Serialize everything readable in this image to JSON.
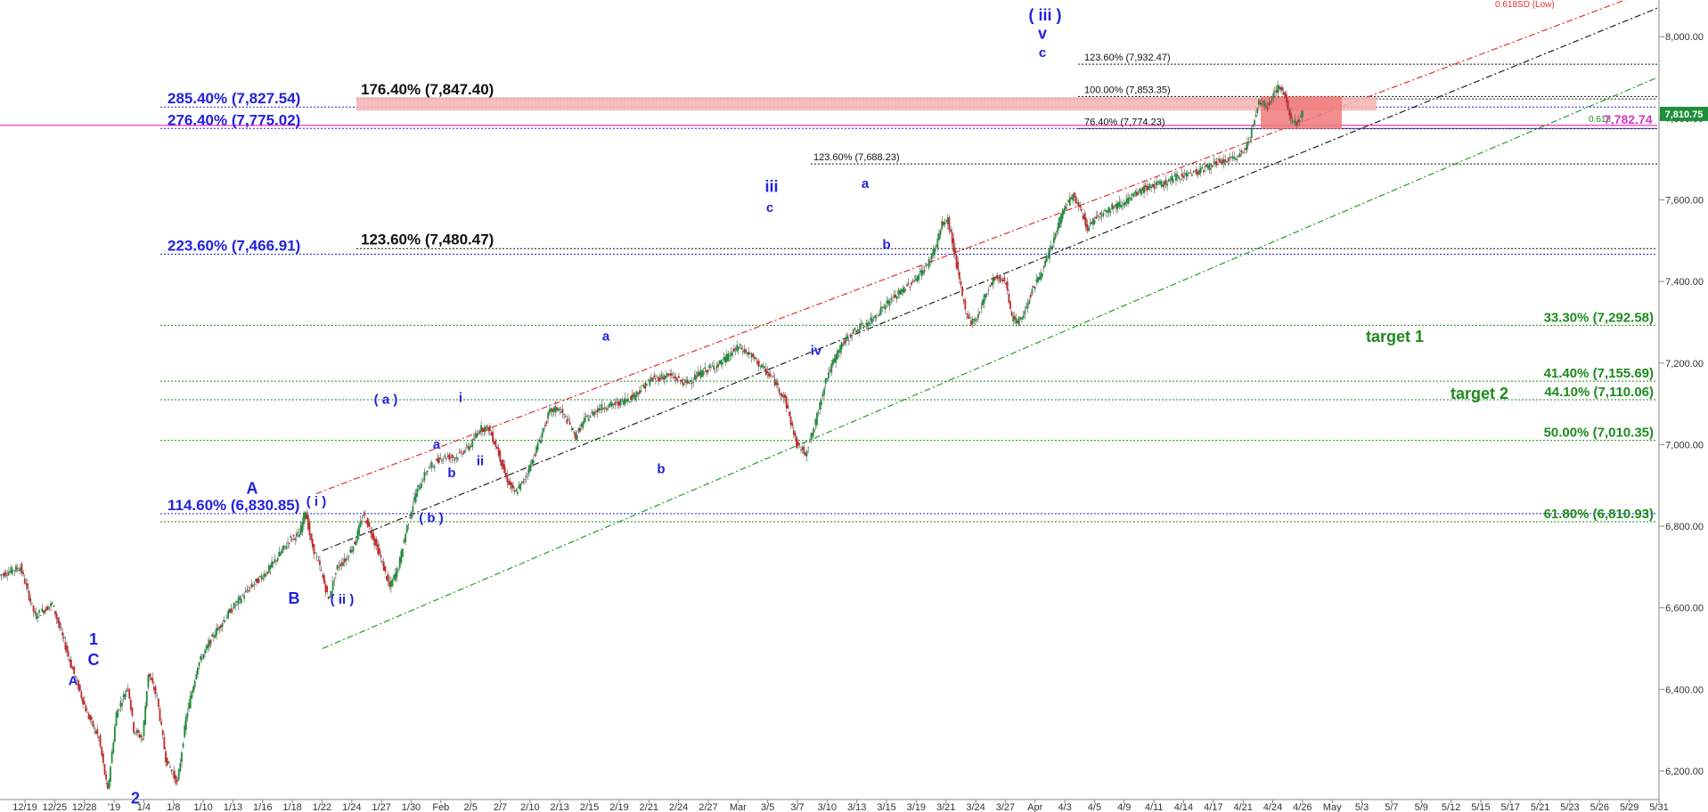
{
  "chart_data": {
    "type": "candlestick",
    "y_axis": {
      "ticks": [
        6200,
        6400,
        6600,
        6800,
        7000,
        7200,
        7400,
        7600,
        7800,
        8000
      ],
      "tick_labels": [
        "6,200.00",
        "6,400.00",
        "6,600.00",
        "6,800.00",
        "7,000.00",
        "7,200.00",
        "7,400.00",
        "7,600.00",
        "7,800.00",
        "8,000.00"
      ],
      "range": [
        6130,
        8090
      ],
      "position": "right"
    },
    "x_axis": {
      "tick_labels": [
        "12/19",
        "12/25",
        "12/28",
        "'19",
        "1/4",
        "1/8",
        "1/10",
        "1/13",
        "1/16",
        "1/18",
        "1/22",
        "1/24",
        "1/27",
        "1/30",
        "Feb",
        "2/5",
        "2/7",
        "2/10",
        "2/13",
        "2/15",
        "2/19",
        "2/21",
        "2/24",
        "2/27",
        "Mar",
        "3/5",
        "3/7",
        "3/10",
        "3/13",
        "3/15",
        "3/19",
        "3/21",
        "3/24",
        "3/27",
        "Apr",
        "4/3",
        "4/5",
        "4/9",
        "4/11",
        "4/14",
        "4/17",
        "4/21",
        "4/24",
        "4/26",
        "May",
        "5/3",
        "5/7",
        "5/9",
        "5/12",
        "5/15",
        "5/17",
        "5/21",
        "5/23",
        "5/26",
        "5/29",
        "5/31"
      ]
    },
    "price_path": [
      [
        0,
        6680
      ],
      [
        7,
        6700
      ],
      [
        12,
        6580
      ],
      [
        18,
        6610
      ],
      [
        24,
        6470
      ],
      [
        30,
        6340
      ],
      [
        34,
        6280
      ],
      [
        37,
        6150
      ],
      [
        40,
        6340
      ],
      [
        44,
        6410
      ],
      [
        46,
        6300
      ],
      [
        49,
        6280
      ],
      [
        51,
        6440
      ],
      [
        54,
        6380
      ],
      [
        57,
        6230
      ],
      [
        61,
        6170
      ],
      [
        64,
        6330
      ],
      [
        68,
        6460
      ],
      [
        74,
        6540
      ],
      [
        80,
        6600
      ],
      [
        86,
        6650
      ],
      [
        92,
        6690
      ],
      [
        96,
        6730
      ],
      [
        100,
        6770
      ],
      [
        103,
        6780
      ],
      [
        105,
        6840
      ],
      [
        107,
        6760
      ],
      [
        110,
        6700
      ],
      [
        113,
        6620
      ],
      [
        116,
        6700
      ],
      [
        119,
        6720
      ],
      [
        122,
        6760
      ],
      [
        125,
        6830
      ],
      [
        128,
        6780
      ],
      [
        131,
        6720
      ],
      [
        134,
        6650
      ],
      [
        137,
        6700
      ],
      [
        140,
        6800
      ],
      [
        143,
        6880
      ],
      [
        147,
        6940
      ],
      [
        152,
        6970
      ],
      [
        157,
        6970
      ],
      [
        162,
        7000
      ],
      [
        165,
        7040
      ],
      [
        168,
        7040
      ],
      [
        171,
        6990
      ],
      [
        174,
        6920
      ],
      [
        177,
        6880
      ],
      [
        180,
        6910
      ],
      [
        183,
        6960
      ],
      [
        186,
        7020
      ],
      [
        189,
        7080
      ],
      [
        192,
        7090
      ],
      [
        195,
        7060
      ],
      [
        198,
        7020
      ],
      [
        201,
        7060
      ],
      [
        206,
        7090
      ],
      [
        212,
        7100
      ],
      [
        218,
        7120
      ],
      [
        224,
        7160
      ],
      [
        230,
        7170
      ],
      [
        236,
        7150
      ],
      [
        242,
        7180
      ],
      [
        248,
        7200
      ],
      [
        254,
        7240
      ],
      [
        258,
        7220
      ],
      [
        262,
        7190
      ],
      [
        266,
        7160
      ],
      [
        270,
        7110
      ],
      [
        274,
        7000
      ],
      [
        277,
        6980
      ],
      [
        280,
        7040
      ],
      [
        284,
        7160
      ],
      [
        289,
        7240
      ],
      [
        294,
        7280
      ],
      [
        299,
        7300
      ],
      [
        304,
        7340
      ],
      [
        309,
        7370
      ],
      [
        314,
        7400
      ],
      [
        319,
        7440
      ],
      [
        322,
        7490
      ],
      [
        324,
        7540
      ],
      [
        326,
        7550
      ],
      [
        328,
        7480
      ],
      [
        330,
        7400
      ],
      [
        332,
        7330
      ],
      [
        334,
        7300
      ],
      [
        336,
        7310
      ],
      [
        339,
        7370
      ],
      [
        342,
        7410
      ],
      [
        346,
        7400
      ],
      [
        348,
        7310
      ],
      [
        350,
        7300
      ],
      [
        352,
        7320
      ],
      [
        355,
        7380
      ],
      [
        358,
        7420
      ],
      [
        361,
        7470
      ],
      [
        364,
        7540
      ],
      [
        366,
        7580
      ],
      [
        369,
        7610
      ],
      [
        372,
        7570
      ],
      [
        374,
        7530
      ],
      [
        377,
        7560
      ],
      [
        382,
        7580
      ],
      [
        388,
        7600
      ],
      [
        394,
        7630
      ],
      [
        400,
        7640
      ],
      [
        406,
        7660
      ],
      [
        412,
        7670
      ],
      [
        418,
        7690
      ],
      [
        424,
        7700
      ],
      [
        428,
        7720
      ],
      [
        431,
        7780
      ],
      [
        433,
        7840
      ],
      [
        436,
        7830
      ],
      [
        438,
        7860
      ],
      [
        440,
        7880
      ],
      [
        442,
        7850
      ],
      [
        444,
        7800
      ],
      [
        446,
        7790
      ],
      [
        448,
        7810
      ]
    ],
    "x_span": 570,
    "fib_levels": [
      {
        "label": "285.40% (7,827.54)",
        "value": 7827.54,
        "color": "#2222dd",
        "style": "blue-left"
      },
      {
        "label": "276.40% (7,775.02)",
        "value": 7775.02,
        "color": "#2222dd",
        "style": "blue-left"
      },
      {
        "label": "223.60% (7,466.91)",
        "value": 7466.91,
        "color": "#2222dd",
        "style": "blue-left"
      },
      {
        "label": "114.60% (6,830.85)",
        "value": 6830.85,
        "color": "#2222dd",
        "style": "blue-left"
      },
      {
        "label": "176.40% (7,847.40)",
        "value": 7847.4,
        "color": "#111111",
        "style": "black-big"
      },
      {
        "label": "123.60% (7,480.47)",
        "value": 7480.47,
        "color": "#111111",
        "style": "black-big"
      },
      {
        "label": "123.60% (7,932.47)",
        "value": 7932.47,
        "color": "#111111",
        "style": "black-small"
      },
      {
        "label": "100.00% (7,853.35)",
        "value": 7853.35,
        "color": "#111111",
        "style": "black-small"
      },
      {
        "label": "76.40% (7,774.23)",
        "value": 7774.23,
        "color": "#111111",
        "style": "black-small"
      },
      {
        "label": "123.60% (7,688.23)",
        "value": 7688.23,
        "color": "#111111",
        "style": "black-small-mid"
      },
      {
        "label": "33.30% (7,292.58)",
        "value": 7292.58,
        "color": "#1e8a1e",
        "style": "green"
      },
      {
        "label": "41.40% (7,155.69)",
        "value": 7155.69,
        "color": "#1e8a1e",
        "style": "green"
      },
      {
        "label": "44.10% (7,110.06)",
        "value": 7110.06,
        "color": "#1e8a1e",
        "style": "green"
      },
      {
        "label": "50.00% (7,010.35)",
        "value": 7010.35,
        "color": "#1e8a1e",
        "style": "green"
      },
      {
        "label": "61.80% (6,810.93)",
        "value": 6810.93,
        "color": "#1e8a1e",
        "style": "green"
      }
    ],
    "targets": [
      {
        "label": "target 1",
        "value": 7265
      },
      {
        "label": "target 2",
        "value": 7125
      }
    ],
    "wave_labels": [
      {
        "text": "A",
        "x": 82,
        "y": 6410,
        "size": "s"
      },
      {
        "text": "1",
        "x": 105,
        "y": 6510,
        "size": "b"
      },
      {
        "text": "C",
        "x": 105,
        "y": 6460,
        "size": "b"
      },
      {
        "text": "2",
        "x": 152,
        "y": 6120,
        "size": "b"
      },
      {
        "text": "A",
        "x": 283,
        "y": 6880,
        "size": "b"
      },
      {
        "text": "B",
        "x": 330,
        "y": 6610,
        "size": "b"
      },
      {
        "text": "( i )",
        "x": 355,
        "y": 6850,
        "size": "s"
      },
      {
        "text": "( ii )",
        "x": 384,
        "y": 6610,
        "size": "s"
      },
      {
        "text": "( a )",
        "x": 433,
        "y": 7100,
        "size": "s"
      },
      {
        "text": "( b )",
        "x": 484,
        "y": 6810,
        "size": "s"
      },
      {
        "text": "a",
        "x": 490,
        "y": 6990,
        "size": "s"
      },
      {
        "text": "b",
        "x": 507,
        "y": 6920,
        "size": "s"
      },
      {
        "text": "i",
        "x": 517,
        "y": 7105,
        "size": "s"
      },
      {
        "text": "ii",
        "x": 539,
        "y": 6950,
        "size": "s"
      },
      {
        "text": "a",
        "x": 680,
        "y": 7255,
        "size": "s"
      },
      {
        "text": "b",
        "x": 742,
        "y": 6930,
        "size": "s"
      },
      {
        "text": "iii",
        "x": 866,
        "y": 7620,
        "size": "b"
      },
      {
        "text": "c",
        "x": 864,
        "y": 7570,
        "size": "s"
      },
      {
        "text": "iv",
        "x": 916,
        "y": 7220,
        "size": "s"
      },
      {
        "text": "a",
        "x": 971,
        "y": 7630,
        "size": "s"
      },
      {
        "text": "b",
        "x": 995,
        "y": 7480,
        "size": "s"
      },
      {
        "text": "( iii )",
        "x": 1173,
        "y": 8040,
        "size": "b"
      },
      {
        "text": "v",
        "x": 1170,
        "y": 7995,
        "size": "b"
      },
      {
        "text": "c",
        "x": 1170,
        "y": 7950,
        "size": "s"
      }
    ],
    "last_price": {
      "label": "7,810.75",
      "value": 7810.75
    },
    "overlap_text": "0.618",
    "overlap_text2": "7,782.74",
    "top_red_label": "0.618SD (Low)"
  }
}
